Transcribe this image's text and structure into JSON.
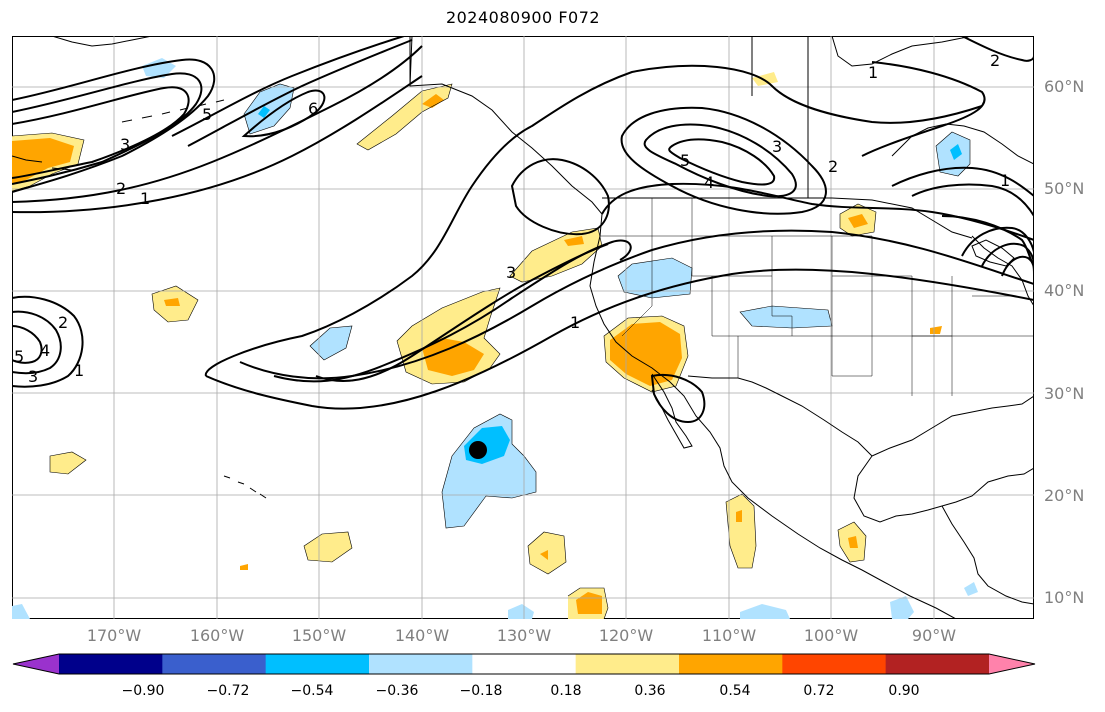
{
  "title": "2024080900 F072",
  "lat_labels": [
    "60°N",
    "50°N",
    "40°N",
    "30°N",
    "20°N",
    "10°N"
  ],
  "lon_labels": [
    "170°W",
    "160°W",
    "150°W",
    "140°W",
    "130°W",
    "120°W",
    "110°W",
    "100°W",
    "90°W"
  ],
  "colorbar": {
    "ticks": [
      "−0.90",
      "−0.72",
      "−0.54",
      "−0.36",
      "−0.18",
      "0.18",
      "0.36",
      "0.54",
      "0.72",
      "0.90"
    ],
    "colors": [
      "#9a32cd",
      "#00008b",
      "#3a5fcd",
      "#00bfff",
      "#b0e2ff",
      "#ffffff",
      "#ffec8b",
      "#ffa500",
      "#ff4500",
      "#b22222",
      "#ff82ab"
    ]
  },
  "contour_labels": [
    "1",
    "2",
    "3",
    "4",
    "5",
    "6"
  ],
  "colors": {
    "light_blue": "#b0e2ff",
    "blue": "#00bfff",
    "yellow": "#ffec8b",
    "orange": "#ffa500",
    "grid": "#a9a9a9",
    "label_gray": "#808080"
  }
}
